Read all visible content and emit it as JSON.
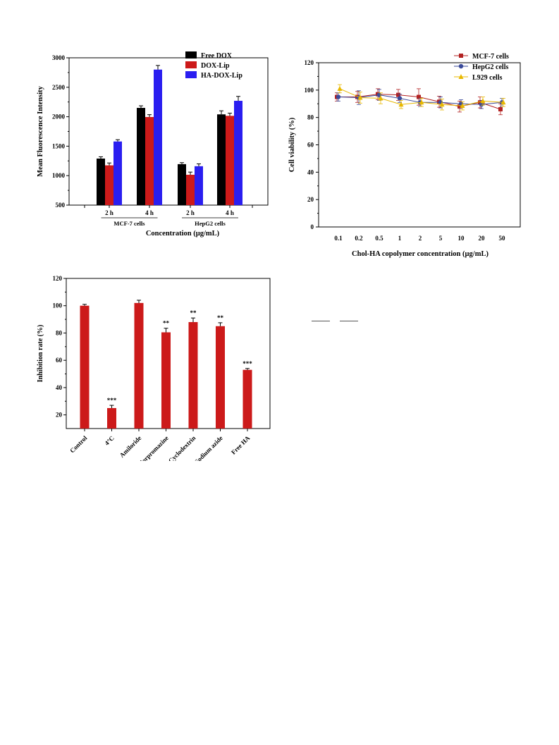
{
  "chart_data": [
    {
      "type": "bar",
      "ylabel": "Mean Fluorescence Intensity",
      "xlabel": "Concentration (µg/mL)",
      "ylim": [
        500,
        3000
      ],
      "yticks": [
        500,
        1000,
        1500,
        2000,
        2500,
        3000
      ],
      "categories": [
        "2 h",
        "4 h",
        "2 h",
        "4 h"
      ],
      "groups": [
        {
          "label": "MCF-7 cells",
          "categories": [
            "2 h",
            "4 h"
          ]
        },
        {
          "label": "HepG2 cells",
          "categories": [
            "2 h",
            "4 h"
          ]
        }
      ],
      "legend_position": "top-right",
      "series": [
        {
          "name": "Free DOX",
          "color": "#000000",
          "values": [
            1290,
            2150,
            1195,
            2040
          ],
          "errors": [
            30,
            35,
            25,
            60
          ]
        },
        {
          "name": "DOX-Lip",
          "color": "#cc1a1a",
          "values": [
            1175,
            1995,
            1015,
            2015
          ],
          "errors": [
            40,
            40,
            45,
            45
          ]
        },
        {
          "name": "HA-DOX-Lip",
          "color": "#2a1ef0",
          "values": [
            1580,
            2800,
            1160,
            2270
          ],
          "errors": [
            30,
            70,
            40,
            75
          ]
        }
      ]
    },
    {
      "type": "line",
      "ylabel": "Cell viability (%)",
      "xlabel": "Chol-HA copolymer concentration (µg/mL)",
      "ylim": [
        0,
        120
      ],
      "yticks": [
        0,
        20,
        40,
        60,
        80,
        100,
        120
      ],
      "x": [
        "0.1",
        "0.2",
        "0.5",
        "1",
        "2",
        "5",
        "10",
        "20",
        "50"
      ],
      "legend_position": "top-right",
      "series": [
        {
          "name": "MCF-7 cells",
          "color": "#b22222",
          "marker": "square",
          "values": [
            95,
            95,
            97,
            96.5,
            95,
            91.5,
            88,
            91,
            86
          ],
          "errors": [
            3,
            4,
            4,
            4,
            6,
            4,
            4,
            4,
            4
          ]
        },
        {
          "name": "HepG2 cells",
          "color": "#3a4a9a",
          "marker": "circle",
          "values": [
            95,
            94.5,
            96.5,
            94,
            91,
            91,
            90,
            89.5,
            91
          ],
          "errors": [
            3,
            5,
            4,
            3,
            3,
            4,
            3,
            3,
            3
          ]
        },
        {
          "name": "L929 cells",
          "color": "#e8b800",
          "marker": "triangle",
          "values": [
            101,
            94.5,
            94,
            89.5,
            91,
            89.5,
            88.5,
            92,
            91
          ],
          "errors": [
            3,
            4,
            4,
            3,
            3,
            4,
            3,
            3,
            3
          ]
        }
      ]
    },
    {
      "type": "bar",
      "ylabel": "Inhibition rate (%)",
      "xlabel": "",
      "ylim": [
        10,
        120
      ],
      "yticks": [
        20,
        40,
        60,
        80,
        100,
        120
      ],
      "categories": [
        "Control",
        "4°C",
        "Amiloride",
        "Chlorpromazine",
        "Cyclodextrin",
        "Sodium azide",
        "Free HA"
      ],
      "color": "#cc1a1a",
      "series": [
        {
          "values": [
            100,
            25,
            102,
            80.5,
            88,
            85,
            53
          ],
          "errors": [
            1,
            2,
            2,
            3,
            3,
            2.5,
            1
          ]
        }
      ],
      "annotations": [
        "",
        "***",
        "",
        "**",
        "**",
        "**",
        "***"
      ]
    }
  ]
}
